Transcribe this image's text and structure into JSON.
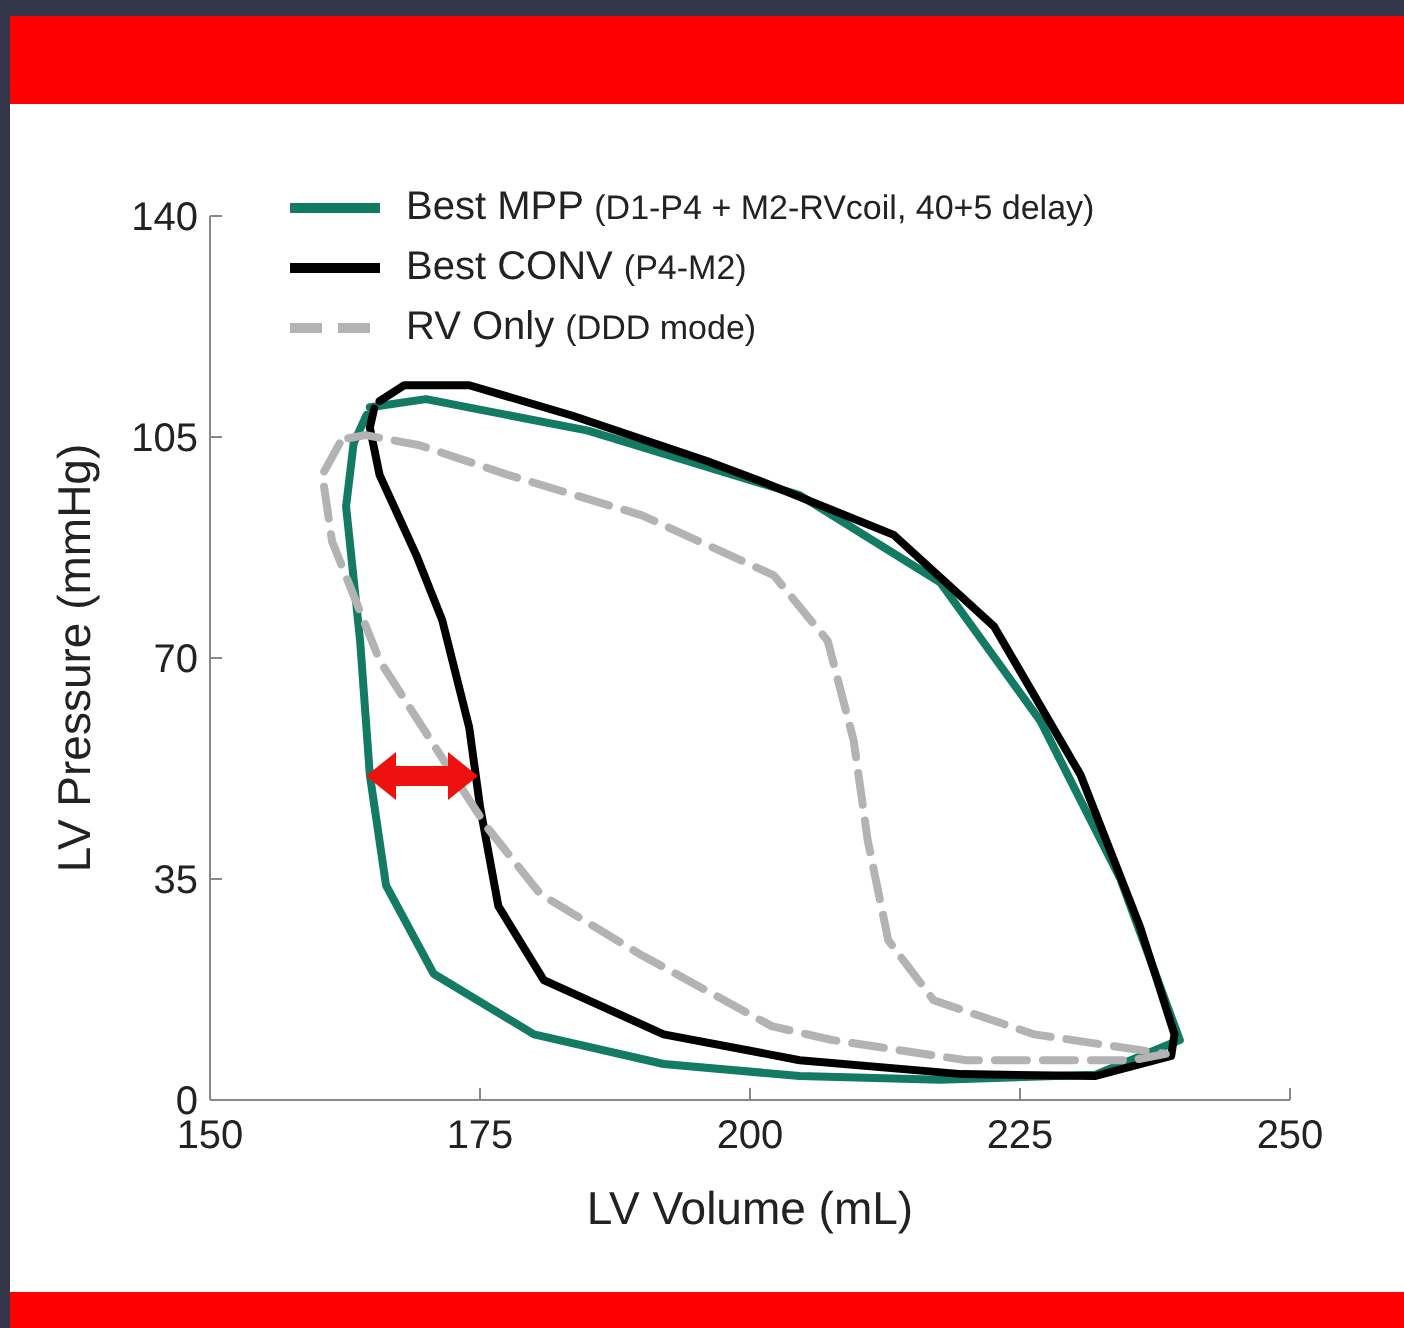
{
  "chart_data": {
    "type": "line",
    "xlabel": "LV Volume (mL)",
    "ylabel": "LV Pressure (mmHg)",
    "xlim": [
      150,
      250
    ],
    "xticks": [
      150,
      175,
      200,
      225,
      250
    ],
    "ylim": [
      0,
      140
    ],
    "yticks": [
      0,
      35,
      70,
      105,
      140
    ],
    "grid": false,
    "legend": "top left",
    "marker": "none",
    "series": [
      {
        "name": "Best MPP (D1-P4 + M2-RVcoil, 40+5 delay)",
        "color": "#137a63",
        "line_style": "solid",
        "x": [
          164.8,
          170,
          185,
          204.6,
          217.6,
          226.9,
          234.3,
          239.8,
          232,
          217.6,
          204.6,
          192,
          180,
          170.7,
          166.3,
          164.8,
          163.9,
          162.6,
          163.3,
          164.5
        ],
        "values": [
          109.7,
          111,
          106,
          95.8,
          82,
          60,
          35,
          9.5,
          4,
          3.2,
          3.8,
          5.7,
          10.4,
          20,
          34,
          51.5,
          72.7,
          94,
          104,
          108.5
        ]
      },
      {
        "name": "Best CONV (P4-M2)",
        "color": "#000000",
        "line_style": "solid",
        "x": [
          165.7,
          168,
          174,
          183.5,
          196,
          201,
          213.3,
          222.6,
          230.6,
          236.1,
          239.3,
          239,
          232,
          219.6,
          204.6,
          192,
          180.9,
          176.7,
          175,
          174,
          171.5,
          169.1,
          165.7,
          164.8,
          165.2
        ],
        "values": [
          110.7,
          113.2,
          113.2,
          108.4,
          101.2,
          98,
          89.5,
          75,
          51.5,
          27.5,
          10.4,
          7,
          3.8,
          4.1,
          6.3,
          10.4,
          19,
          30.7,
          46.5,
          59,
          76,
          86.3,
          99,
          106.5,
          109.5
        ]
      },
      {
        "name": "RV Only (DDD mode)",
        "color": "#b3b3b3",
        "line_style": "dashed",
        "x": [
          162,
          160.4,
          161.3,
          165.7,
          171.3,
          175.6,
          180.6,
          189.8,
          202,
          207.6,
          220,
          235.4,
          238.5,
          226.3,
          217,
          212.8,
          210.9,
          209.6,
          207.2,
          202.2,
          190,
          177.6,
          169.4,
          164.4,
          162.8
        ],
        "values": [
          104,
          99,
          88.5,
          69.6,
          54.7,
          43.3,
          32.6,
          23.1,
          11.7,
          9.5,
          6.3,
          6.3,
          7.3,
          10.4,
          15.8,
          25.3,
          41.1,
          56.9,
          72.7,
          83.1,
          92.6,
          99,
          103.7,
          105.3,
          104.8
        ]
      }
    ]
  }
}
